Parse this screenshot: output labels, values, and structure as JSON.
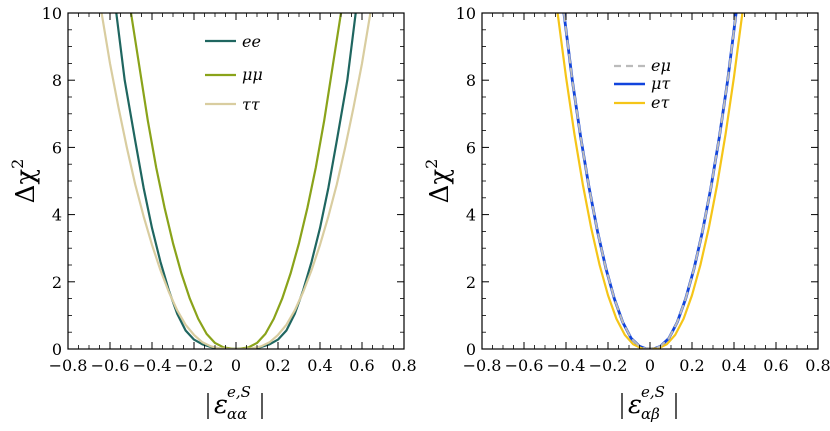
{
  "chart_data": [
    {
      "type": "line",
      "title": "",
      "xlabel": "|ε^{e,S}_{αα}|",
      "ylabel": "Δχ²",
      "xlim": [
        -0.8,
        0.8
      ],
      "ylim": [
        0,
        10
      ],
      "xticks": [
        "−0.8",
        "−0.6",
        "−0.4",
        "−0.2",
        "0",
        "0.2",
        "0.4",
        "0.6",
        "0.8"
      ],
      "yticks": [
        "0",
        "2",
        "4",
        "6",
        "8",
        "10"
      ],
      "legend_position": "top-center",
      "series": [
        {
          "name": "ee",
          "color": "#1f6660",
          "x": [
            -0.57,
            -0.53,
            -0.48,
            -0.44,
            -0.4,
            -0.36,
            -0.32,
            -0.28,
            -0.24,
            -0.2,
            -0.16,
            -0.12,
            -0.08,
            -0.04,
            0.0,
            0.04,
            0.08,
            0.12,
            0.16,
            0.2,
            0.24,
            0.28,
            0.32,
            0.36,
            0.4,
            0.44,
            0.48,
            0.53,
            0.57
          ],
          "y": [
            10.0,
            8.0,
            6.2,
            4.8,
            3.6,
            2.6,
            1.75,
            1.05,
            0.55,
            0.28,
            0.14,
            0.06,
            0.02,
            0.01,
            0.0,
            0.01,
            0.02,
            0.06,
            0.14,
            0.28,
            0.55,
            1.05,
            1.75,
            2.6,
            3.6,
            4.8,
            6.2,
            8.0,
            10.0
          ]
        },
        {
          "name": "μμ",
          "color": "#8aa31a",
          "x": [
            -0.5,
            -0.46,
            -0.42,
            -0.38,
            -0.34,
            -0.3,
            -0.26,
            -0.22,
            -0.18,
            -0.14,
            -0.1,
            -0.06,
            -0.02,
            0.0,
            0.02,
            0.06,
            0.1,
            0.14,
            0.18,
            0.22,
            0.26,
            0.3,
            0.34,
            0.38,
            0.42,
            0.46,
            0.5
          ],
          "y": [
            10.0,
            8.4,
            6.8,
            5.4,
            4.2,
            3.15,
            2.25,
            1.5,
            0.9,
            0.45,
            0.18,
            0.05,
            0.01,
            0.0,
            0.01,
            0.05,
            0.18,
            0.45,
            0.9,
            1.5,
            2.25,
            3.15,
            4.2,
            5.4,
            6.8,
            8.4,
            10.0
          ]
        },
        {
          "name": "ττ",
          "color": "#d9cda0",
          "x": [
            -0.64,
            -0.6,
            -0.56,
            -0.52,
            -0.48,
            -0.44,
            -0.4,
            -0.36,
            -0.32,
            -0.28,
            -0.24,
            -0.2,
            -0.16,
            -0.12,
            -0.08,
            -0.04,
            0.0,
            0.04,
            0.08,
            0.12,
            0.16,
            0.2,
            0.24,
            0.28,
            0.32,
            0.36,
            0.4,
            0.44,
            0.48,
            0.52,
            0.56,
            0.6,
            0.64
          ],
          "y": [
            10.0,
            8.5,
            7.2,
            6.0,
            4.9,
            3.95,
            3.1,
            2.35,
            1.7,
            1.15,
            0.72,
            0.42,
            0.2,
            0.08,
            0.02,
            0.005,
            0.0,
            0.005,
            0.02,
            0.08,
            0.2,
            0.42,
            0.72,
            1.15,
            1.7,
            2.35,
            3.1,
            3.95,
            4.9,
            6.0,
            7.2,
            8.5,
            10.0
          ]
        }
      ]
    },
    {
      "type": "line",
      "title": "",
      "xlabel": "|ε^{e,S}_{αβ}|",
      "ylabel": "Δχ²",
      "xlim": [
        -0.8,
        0.8
      ],
      "ylim": [
        0,
        10
      ],
      "xticks": [
        "−0.8",
        "−0.6",
        "−0.4",
        "−0.2",
        "0",
        "0.2",
        "0.4",
        "0.6",
        "0.8"
      ],
      "yticks": [
        "0",
        "2",
        "4",
        "6",
        "8",
        "10"
      ],
      "legend_position": "top-center",
      "series": [
        {
          "name": "eμ",
          "color": "#bbbbbb",
          "dashed": true,
          "x": [
            -0.41,
            -0.37,
            -0.33,
            -0.29,
            -0.25,
            -0.21,
            -0.17,
            -0.13,
            -0.09,
            -0.05,
            -0.02,
            0.0,
            0.02,
            0.05,
            0.09,
            0.13,
            0.17,
            0.21,
            0.25,
            0.29,
            0.33,
            0.37,
            0.41
          ],
          "y": [
            10.0,
            8.0,
            6.3,
            4.8,
            3.5,
            2.4,
            1.5,
            0.8,
            0.32,
            0.08,
            0.01,
            0.0,
            0.01,
            0.08,
            0.32,
            0.8,
            1.5,
            2.4,
            3.5,
            4.8,
            6.3,
            8.0,
            10.0
          ]
        },
        {
          "name": "μτ",
          "color": "#1144dd",
          "x": [
            -0.41,
            -0.37,
            -0.33,
            -0.29,
            -0.25,
            -0.21,
            -0.17,
            -0.13,
            -0.09,
            -0.05,
            -0.02,
            0.0,
            0.02,
            0.05,
            0.09,
            0.13,
            0.17,
            0.21,
            0.25,
            0.29,
            0.33,
            0.37,
            0.41
          ],
          "y": [
            10.0,
            8.0,
            6.3,
            4.8,
            3.5,
            2.4,
            1.5,
            0.8,
            0.32,
            0.08,
            0.01,
            0.0,
            0.01,
            0.08,
            0.32,
            0.8,
            1.5,
            2.4,
            3.5,
            4.8,
            6.3,
            8.0,
            10.0
          ]
        },
        {
          "name": "eτ",
          "color": "#f5c518",
          "x": [
            -0.44,
            -0.4,
            -0.36,
            -0.32,
            -0.28,
            -0.24,
            -0.2,
            -0.16,
            -0.12,
            -0.08,
            -0.04,
            0.0,
            0.04,
            0.08,
            0.12,
            0.16,
            0.2,
            0.24,
            0.28,
            0.32,
            0.36,
            0.4,
            0.44
          ],
          "y": [
            10.0,
            8.1,
            6.4,
            4.9,
            3.6,
            2.5,
            1.6,
            0.9,
            0.42,
            0.14,
            0.02,
            0.0,
            0.02,
            0.14,
            0.42,
            0.9,
            1.6,
            2.5,
            3.6,
            4.9,
            6.4,
            8.1,
            10.0
          ]
        }
      ]
    }
  ]
}
